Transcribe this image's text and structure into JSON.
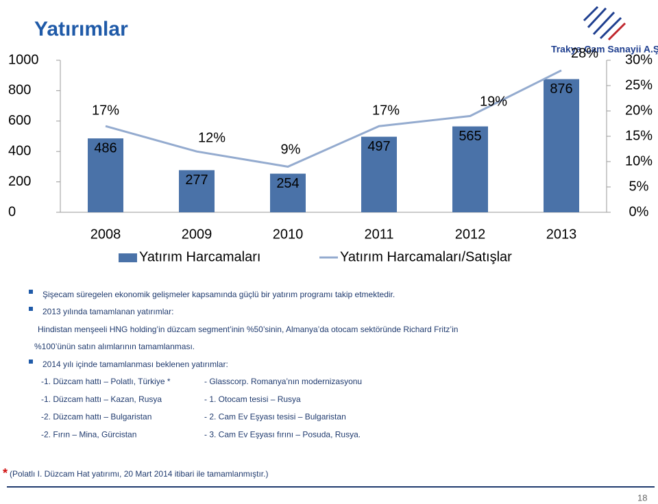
{
  "header": {
    "title": "Yatırımlar",
    "logo_text": "Trakya Cam Sanayii A.Ş."
  },
  "chart_data": {
    "type": "bar",
    "categories": [
      "2008",
      "2009",
      "2010",
      "2011",
      "2012",
      "2013"
    ],
    "series": [
      {
        "name": "Yatırım Harcamaları",
        "type": "bar",
        "color": "#4a72a8",
        "values": [
          486,
          277,
          254,
          497,
          565,
          876
        ]
      },
      {
        "name": "Yatırım Harcamaları/Satışlar",
        "type": "line",
        "axis": "y2",
        "color": "#94abcf",
        "values": [
          17,
          12,
          9,
          17,
          19,
          28
        ],
        "value_labels": [
          "17%",
          "12%",
          "9%",
          "17%",
          "19%",
          "28%"
        ]
      }
    ],
    "ylim": [
      0,
      1000
    ],
    "yticks": [
      0,
      200,
      400,
      600,
      800,
      1000
    ],
    "y2lim": [
      0,
      30
    ],
    "y2ticks": [
      {
        "value": 0,
        "label": "0%"
      },
      {
        "value": 5,
        "label": "5%"
      },
      {
        "value": 10,
        "label": "10%"
      },
      {
        "value": 15,
        "label": "15%"
      },
      {
        "value": 20,
        "label": "20%"
      },
      {
        "value": 25,
        "label": "25%"
      },
      {
        "value": 30,
        "label": "30%"
      }
    ],
    "legend": "bottom"
  },
  "bullets": [
    "Şişecam süregelen ekonomik gelişmeler kapsamında  güçlü bir  yatırım programı takip etmektedir.",
    "2013 yılında tamamlanan yatırımlar:",
    "2014 yılı içinde tamamlanması beklenen yatırımlar:"
  ],
  "paragraph_lines": [
    "Hindistan menşeeli HNG holding’in düzcam segment’inin %50’sinin, Almanya’da otocam sektöründe Richard Fritz’in",
    "%100’ünün satın alımlarının tamamlanması."
  ],
  "list": {
    "rows": [
      [
        "-1. Düzcam hattı – Polatlı, Türkiye *",
        "- Glasscorp. Romanya’nın modernizasyonu"
      ],
      [
        "-1. Düzcam hattı – Kazan, Rusya",
        "- 1. Otocam tesisi – Rusya"
      ],
      [
        "-2. Düzcam hattı – Bulgaristan",
        "- 2. Cam Ev Eşyası tesisi – Bulgaristan"
      ],
      [
        "-2. Fırın – Mina, Gürcistan",
        "- 3. Cam Ev Eşyası fırını – Posuda, Rusya."
      ]
    ]
  },
  "footnote": {
    "marker": "*",
    "text": "(Polatlı I. Düzcam Hat yatırımı, 20 Mart 2014 itibari ile tamamlanmıştır.)"
  },
  "page_number": "18"
}
